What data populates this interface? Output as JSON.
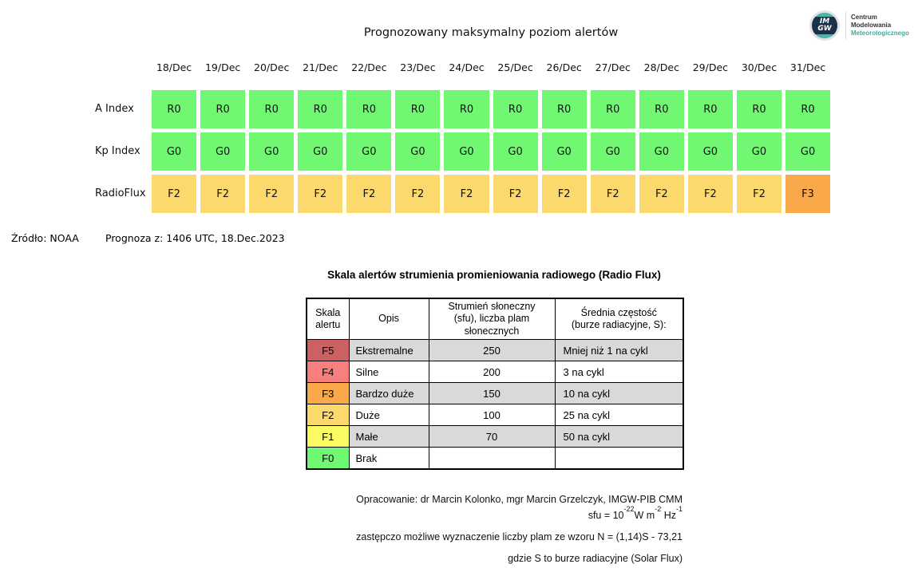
{
  "title": "Prognozowany maksymalny poziom alertów",
  "logo": {
    "acronym_top": "IM",
    "acronym_bottom": "GW",
    "lines": [
      "Centrum",
      "Modelowania",
      "Meteorologicznego"
    ],
    "teal_color": "#3cab9e"
  },
  "chart_data": {
    "type": "heatmap",
    "title": "Prognozowany maksymalny poziom alertów",
    "x": [
      "18/Dec",
      "19/Dec",
      "20/Dec",
      "21/Dec",
      "22/Dec",
      "23/Dec",
      "24/Dec",
      "25/Dec",
      "26/Dec",
      "27/Dec",
      "28/Dec",
      "29/Dec",
      "30/Dec",
      "31/Dec"
    ],
    "rows": [
      {
        "label": "A Index",
        "values": [
          "R0",
          "R0",
          "R0",
          "R0",
          "R0",
          "R0",
          "R0",
          "R0",
          "R0",
          "R0",
          "R0",
          "R0",
          "R0",
          "R0"
        ]
      },
      {
        "label": "Kp Index",
        "values": [
          "G0",
          "G0",
          "G0",
          "G0",
          "G0",
          "G0",
          "G0",
          "G0",
          "G0",
          "G0",
          "G0",
          "G0",
          "G0",
          "G0"
        ]
      },
      {
        "label": "RadioFlux",
        "values": [
          "F2",
          "F2",
          "F2",
          "F2",
          "F2",
          "F2",
          "F2",
          "F2",
          "F2",
          "F2",
          "F2",
          "F2",
          "F2",
          "F3"
        ]
      }
    ],
    "value_colors": {
      "R0": "#70f873",
      "G0": "#70f873",
      "F2": "#fcd96d",
      "F3": "#f9a94a"
    }
  },
  "source": {
    "label": "Źródło: NOAA",
    "issued": "Prognoza z: 1406 UTC, 18.Dec.2023"
  },
  "scale_table": {
    "title": "Skala alertów strumienia promieniowania radiowego (Radio Flux)",
    "headers": [
      "Skala\nalertu",
      "Opis",
      "Strumień słoneczny\n(sfu), liczba plam\nsłonecznych",
      "Średnia częstość\n(burze radiacyjne, S):"
    ],
    "rows": [
      {
        "code": "F5",
        "color": "#cb6162",
        "desc": "Ekstremalne",
        "flux": "250",
        "freq": "Mniej niż 1 na cykl"
      },
      {
        "code": "F4",
        "color": "#f97f7f",
        "desc": "Silne",
        "flux": "200",
        "freq": "3 na cykl"
      },
      {
        "code": "F3",
        "color": "#f9a94a",
        "desc": "Bardzo duże",
        "flux": "150",
        "freq": "10 na cykl"
      },
      {
        "code": "F2",
        "color": "#fcd96d",
        "desc": "Duże",
        "flux": "100",
        "freq": "25 na cykl"
      },
      {
        "code": "F1",
        "color": "#fbfb63",
        "desc": "Małe",
        "flux": "70",
        "freq": "50 na cykl"
      },
      {
        "code": "F0",
        "color": "#70f873",
        "desc": "Brak",
        "flux": "",
        "freq": ""
      }
    ],
    "shaded_row_color": "#d9d9d9"
  },
  "footer": {
    "credit": "Opracowanie: dr Marcin Kolonko, mgr Marcin Grzelczyk, IMGW-PIB CMM",
    "sfu_formula": {
      "base1": "sfu = 10",
      "sup1": "-22",
      "base2": "W m",
      "sup2": "-2",
      "base3": " Hz",
      "sup3": "-1"
    },
    "note1": "zastępczo możliwe wyznaczenie liczby plam ze wzoru N = (1,14)S - 73,21",
    "note2": "gdzie S to burze radiacyjne (Solar Flux)"
  }
}
